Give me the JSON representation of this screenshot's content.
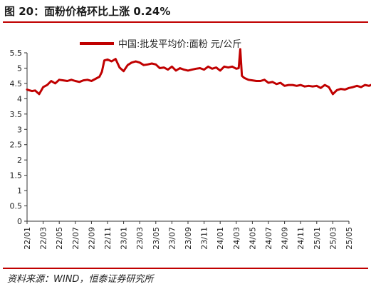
{
  "figure": {
    "title": "图  20：面粉价格环比上涨 0.24%",
    "source": "资料来源：WIND，恒泰证券研究所"
  },
  "chart_data": {
    "type": "line",
    "title": "",
    "xlabel": "",
    "ylabel": "",
    "ylim": [
      0,
      5.5
    ],
    "yticks": [
      "0",
      "0.5",
      "1",
      "1.5",
      "2",
      "2.5",
      "3",
      "3.5",
      "4",
      "4.5",
      "5",
      "5.5"
    ],
    "xticks": [
      "22/01",
      "22/03",
      "22/05",
      "22/07",
      "22/09",
      "22/11",
      "23/01",
      "23/03",
      "23/05",
      "23/07",
      "23/09",
      "23/11",
      "24/01",
      "24/03",
      "24/05",
      "24/07",
      "24/09",
      "24/11",
      "25/01",
      "25/03",
      "25/05"
    ],
    "legend_position": "top",
    "grid": false,
    "series": [
      {
        "name": "中国:批发平均价:面粉  元/公斤",
        "color": "#c00000",
        "x": [
          0,
          0.2,
          0.6,
          1.0,
          1.5,
          2.0,
          2.5,
          3.0,
          3.5,
          4.0,
          4.5,
          5.0,
          5.5,
          6.0,
          6.5,
          7.0,
          7.5,
          8.0,
          8.5,
          9.0,
          9.3,
          9.6,
          10.0,
          10.5,
          11.0,
          11.5,
          12.0,
          12.5,
          13.0,
          13.5,
          14.0,
          14.5,
          15.0,
          15.5,
          16.0,
          16.5,
          17.0,
          17.5,
          18.0,
          18.5,
          19.0,
          19.5,
          20.0,
          20.5,
          21.0,
          21.5,
          22.0,
          22.5,
          23.0,
          23.5,
          24.0,
          24.5,
          25.0,
          25.5,
          26.0,
          26.3,
          26.5,
          26.7,
          27.0,
          27.5,
          28.0,
          28.5,
          29.0,
          29.5,
          30.0,
          30.5,
          31.0,
          31.5,
          32.0,
          32.5,
          33.0,
          33.5,
          34.0,
          34.5,
          35.0,
          35.5,
          36.0,
          36.5,
          37.0,
          37.5,
          38.0,
          38.5,
          39.0,
          39.5,
          40.0,
          40.5,
          41.0,
          41.5,
          42.0,
          42.5,
          43.0,
          43.5,
          44.0
        ],
        "values": [
          4.3,
          4.28,
          4.25,
          4.27,
          4.15,
          4.38,
          4.45,
          4.58,
          4.5,
          4.62,
          4.6,
          4.58,
          4.62,
          4.58,
          4.55,
          4.6,
          4.62,
          4.58,
          4.65,
          4.72,
          4.88,
          5.25,
          5.28,
          5.22,
          5.3,
          5.02,
          4.9,
          5.1,
          5.18,
          5.22,
          5.18,
          5.1,
          5.12,
          5.15,
          5.12,
          5.0,
          5.02,
          4.95,
          5.05,
          4.92,
          5.0,
          4.95,
          4.92,
          4.95,
          4.98,
          5.0,
          4.95,
          5.05,
          4.98,
          5.02,
          4.92,
          5.05,
          5.02,
          5.05,
          4.98,
          5.0,
          5.62,
          4.75,
          4.68,
          4.62,
          4.6,
          4.58,
          4.58,
          4.62,
          4.52,
          4.55,
          4.48,
          4.52,
          4.42,
          4.45,
          4.45,
          4.42,
          4.45,
          4.4,
          4.42,
          4.4,
          4.42,
          4.35,
          4.45,
          4.38,
          4.15,
          4.28,
          4.32,
          4.3,
          4.35,
          4.38,
          4.42,
          4.38,
          4.45,
          4.42,
          4.48,
          4.45,
          4.48
        ]
      }
    ]
  }
}
